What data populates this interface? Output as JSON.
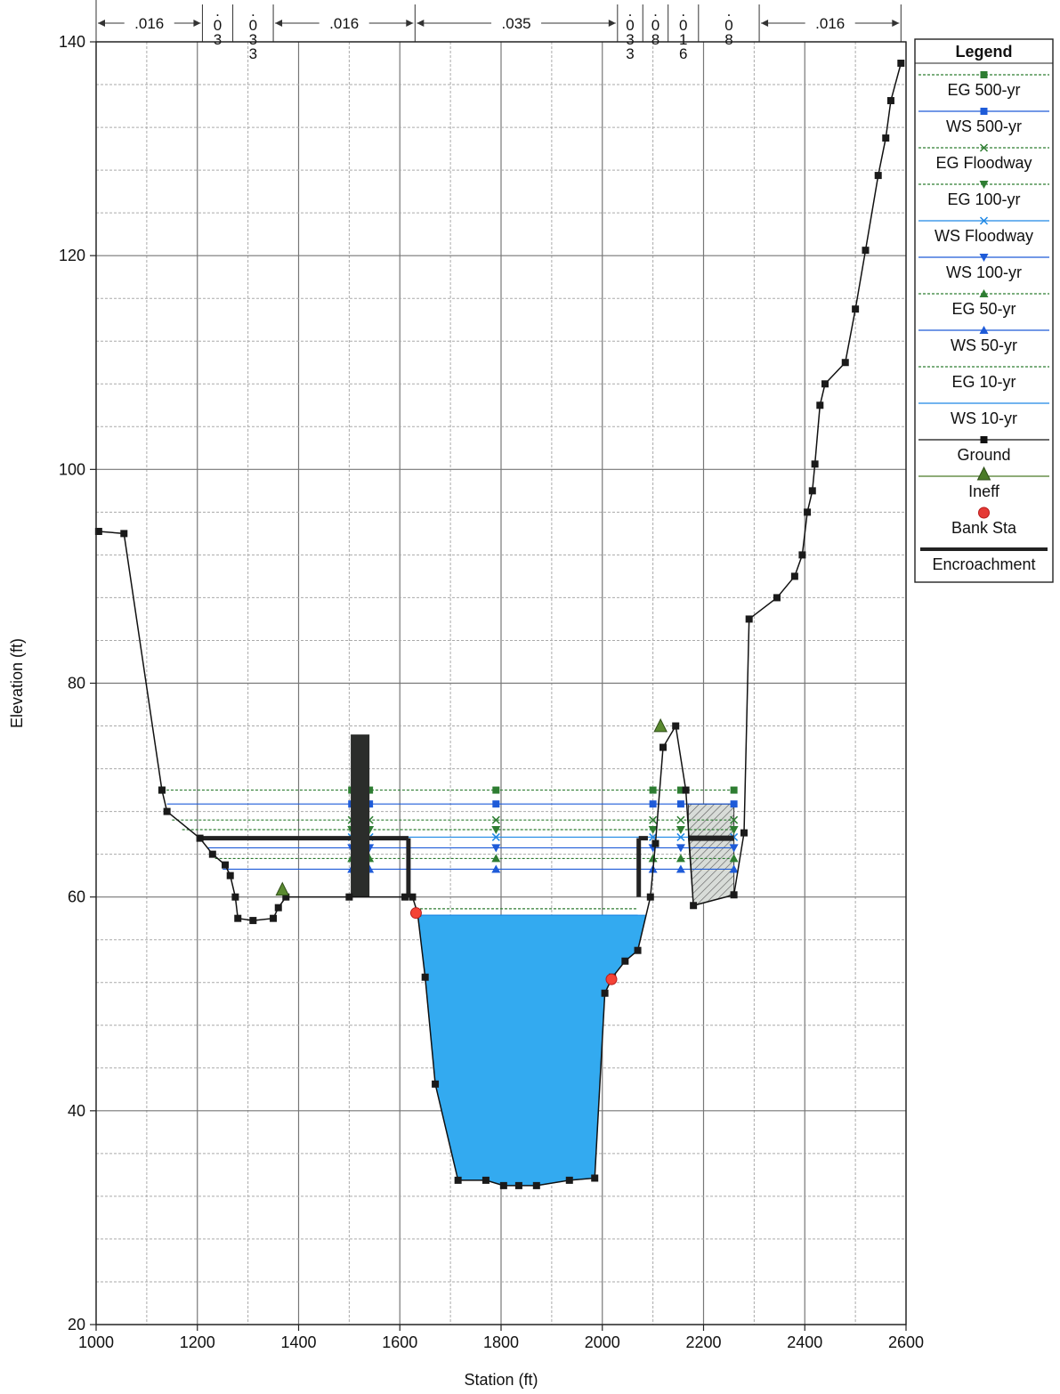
{
  "chart_data": {
    "type": "line",
    "title": "",
    "xlabel": "Station (ft)",
    "ylabel": "Elevation (ft)",
    "xlim": [
      1000,
      2600
    ],
    "ylim": [
      20,
      140
    ],
    "xticks": [
      1000,
      1200,
      1400,
      1600,
      1800,
      2000,
      2200,
      2400,
      2600
    ],
    "yticks": [
      20,
      40,
      60,
      80,
      100,
      120,
      140
    ],
    "grid": true,
    "legend": {
      "title": "Legend",
      "position": "right",
      "items": [
        {
          "label": "EG 500-yr",
          "color": "#2e7d32",
          "marker": "square",
          "dash": "dotted"
        },
        {
          "label": "WS 500-yr",
          "color": "#1e5bd8",
          "marker": "square",
          "dash": "solid"
        },
        {
          "label": "EG Floodway",
          "color": "#2e7d32",
          "marker": "x",
          "dash": "dotted"
        },
        {
          "label": "EG 100-yr",
          "color": "#2e7d32",
          "marker": "triangle-down",
          "dash": "dotted"
        },
        {
          "label": "WS Floodway",
          "color": "#1e88e5",
          "marker": "x",
          "dash": "solid"
        },
        {
          "label": "WS 100-yr",
          "color": "#1e5bd8",
          "marker": "triangle-down",
          "dash": "solid"
        },
        {
          "label": "EG 50-yr",
          "color": "#2e7d32",
          "marker": "triangle",
          "dash": "dotted"
        },
        {
          "label": "WS 50-yr",
          "color": "#1e5bd8",
          "marker": "triangle",
          "dash": "solid"
        },
        {
          "label": "EG 10-yr",
          "color": "#2e7d32",
          "marker": "none",
          "dash": "dotted"
        },
        {
          "label": "WS 10-yr",
          "color": "#1e88e5",
          "marker": "none",
          "dash": "solid"
        },
        {
          "label": "Ground",
          "color": "#111111",
          "marker": "square",
          "dash": "solid"
        },
        {
          "label": "Ineff",
          "color": "#4a7a28",
          "marker": "big-triangle",
          "dash": "solid"
        },
        {
          "label": "Bank Sta",
          "color": "#e53935",
          "marker": "circle",
          "dash": "none"
        },
        {
          "label": "Encroachment",
          "color": "#222222",
          "marker": "none",
          "dash": "thick"
        }
      ]
    },
    "manning_n": [
      {
        "x0": 1000,
        "x1": 1210,
        "label": ".016"
      },
      {
        "x0": 1210,
        "x1": 1270,
        "label": ".03"
      },
      {
        "x0": 1270,
        "x1": 1350,
        "label": ".033"
      },
      {
        "x0": 1350,
        "x1": 1630,
        "label": ".016"
      },
      {
        "x0": 1630,
        "x1": 2030,
        "label": ".035"
      },
      {
        "x0": 2030,
        "x1": 2080,
        "label": ".033"
      },
      {
        "x0": 2080,
        "x1": 2130,
        "label": ".08"
      },
      {
        "x0": 2130,
        "x1": 2190,
        "label": ".016"
      },
      {
        "x0": 2190,
        "x1": 2310,
        "label": ".08"
      },
      {
        "x0": 2310,
        "x1": 2590,
        "label": ".016"
      }
    ],
    "ground": [
      [
        1005,
        94.2
      ],
      [
        1055,
        94
      ],
      [
        1130,
        70
      ],
      [
        1140,
        68
      ],
      [
        1205,
        65.5
      ],
      [
        1230,
        64
      ],
      [
        1255,
        63
      ],
      [
        1265,
        62
      ],
      [
        1275,
        60
      ],
      [
        1280,
        58
      ],
      [
        1310,
        57.8
      ],
      [
        1350,
        58
      ],
      [
        1360,
        59
      ],
      [
        1375,
        60
      ],
      [
        1500,
        60
      ],
      [
        1610,
        60
      ],
      [
        1625,
        60
      ],
      [
        1635,
        58.5
      ],
      [
        1650,
        52.5
      ],
      [
        1670,
        42.5
      ],
      [
        1715,
        33.5
      ],
      [
        1770,
        33.5
      ],
      [
        1805,
        33
      ],
      [
        1835,
        33
      ],
      [
        1870,
        33
      ],
      [
        1935,
        33.5
      ],
      [
        1985,
        33.7
      ],
      [
        2005,
        51
      ],
      [
        2020,
        52.5
      ],
      [
        2045,
        54
      ],
      [
        2070,
        55
      ],
      [
        2095,
        60
      ],
      [
        2105,
        65
      ],
      [
        2120,
        74
      ],
      [
        2145,
        76
      ],
      [
        2165,
        70
      ],
      [
        2180,
        59.2
      ],
      [
        2260,
        60.2
      ],
      [
        2280,
        66
      ],
      [
        2290,
        86
      ],
      [
        2345,
        88
      ],
      [
        2380,
        90
      ],
      [
        2395,
        92
      ],
      [
        2405,
        96
      ],
      [
        2415,
        98
      ],
      [
        2420,
        100.5
      ],
      [
        2430,
        106
      ],
      [
        2440,
        108
      ],
      [
        2480,
        110
      ],
      [
        2500,
        115
      ],
      [
        2520,
        120.5
      ],
      [
        2545,
        127.5
      ],
      [
        2560,
        131
      ],
      [
        2570,
        134.5
      ],
      [
        2590,
        138
      ]
    ],
    "water_surfaces": [
      {
        "name": "EG 500-yr",
        "elev": 70,
        "x0": 1130,
        "x1": 2260
      },
      {
        "name": "WS 500-yr",
        "elev": 68.7,
        "x0": 1140,
        "x1": 2260
      },
      {
        "name": "EG Floodway",
        "elev": 67.2,
        "x0": 1150,
        "x1": 2260
      },
      {
        "name": "EG 100-yr",
        "elev": 66.3,
        "x0": 1170,
        "x1": 2260
      },
      {
        "name": "WS Floodway",
        "elev": 65.6,
        "x0": 1200,
        "x1": 2260
      },
      {
        "name": "WS 100-yr",
        "elev": 64.6,
        "x0": 1220,
        "x1": 2260
      },
      {
        "name": "EG 50-yr",
        "elev": 63.6,
        "x0": 1235,
        "x1": 2260
      },
      {
        "name": "WS 50-yr",
        "elev": 62.6,
        "x0": 1250,
        "x1": 2260
      },
      {
        "name": "EG 10-yr",
        "elev": 58.9,
        "x0": 1640,
        "x1": 2070
      },
      {
        "name": "WS 10-yr",
        "elev": 58.3,
        "x0": 1640,
        "x1": 2070
      }
    ],
    "water_fill_elev": 58.3,
    "bank_stations": [
      [
        1632,
        58.5
      ],
      [
        2018,
        52.3
      ]
    ],
    "ineffective_markers": [
      [
        1368,
        60.5
      ],
      [
        2115,
        75.8
      ]
    ],
    "encroachment": {
      "left_x": 1617,
      "right_x": 2072,
      "elev": 65.5,
      "left_edge_x": 1205,
      "right_block": [
        2170,
        2260
      ]
    },
    "pier": {
      "x0": 1503,
      "x1": 1540,
      "top": 75.2,
      "bottom": 60
    }
  }
}
